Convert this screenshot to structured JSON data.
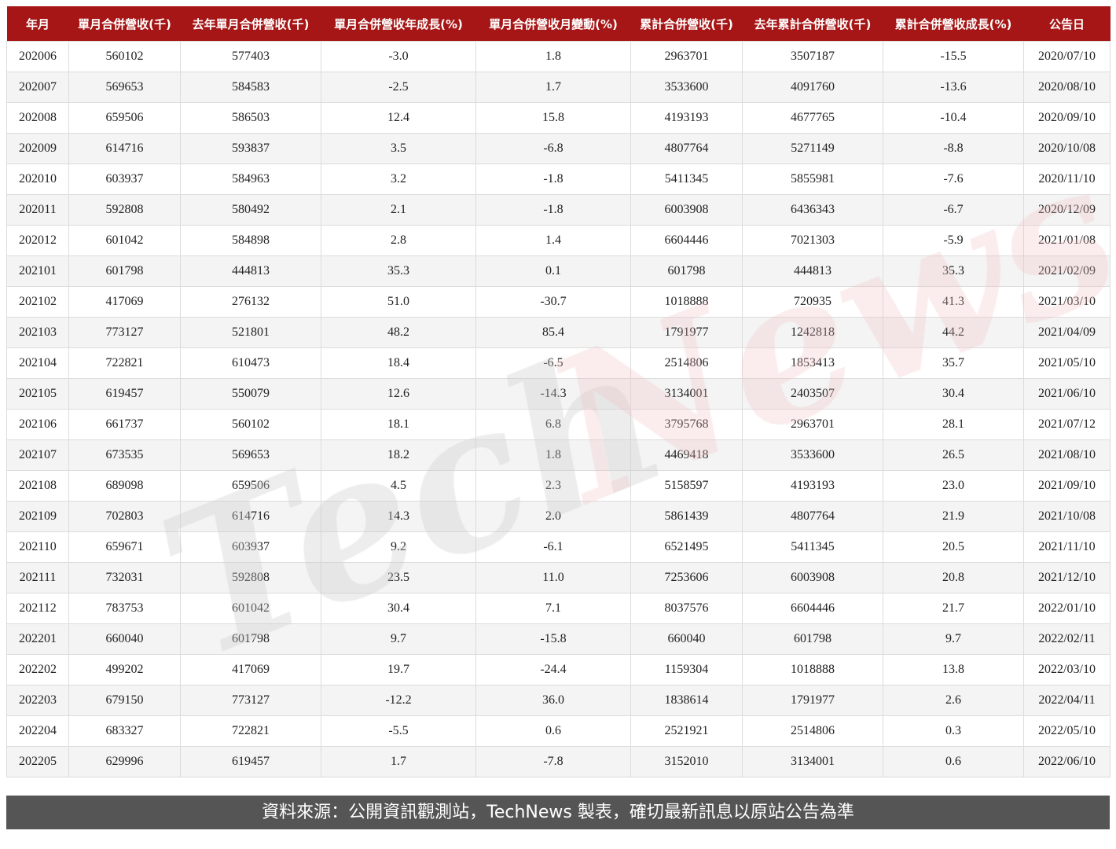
{
  "table": {
    "headers": [
      "年月",
      "單月合併營收(千)",
      "去年單月合併營收(千)",
      "單月合併營收年成長(%)",
      "單月合併營收月變動(%)",
      "累計合併營收(千)",
      "去年累計合併營收(千)",
      "累計合併營收成長(%)",
      "公告日"
    ],
    "rows": [
      [
        "202006",
        "560102",
        "577403",
        "-3.0",
        "1.8",
        "2963701",
        "3507187",
        "-15.5",
        "2020/07/10"
      ],
      [
        "202007",
        "569653",
        "584583",
        "-2.5",
        "1.7",
        "3533600",
        "4091760",
        "-13.6",
        "2020/08/10"
      ],
      [
        "202008",
        "659506",
        "586503",
        "12.4",
        "15.8",
        "4193193",
        "4677765",
        "-10.4",
        "2020/09/10"
      ],
      [
        "202009",
        "614716",
        "593837",
        "3.5",
        "-6.8",
        "4807764",
        "5271149",
        "-8.8",
        "2020/10/08"
      ],
      [
        "202010",
        "603937",
        "584963",
        "3.2",
        "-1.8",
        "5411345",
        "5855981",
        "-7.6",
        "2020/11/10"
      ],
      [
        "202011",
        "592808",
        "580492",
        "2.1",
        "-1.8",
        "6003908",
        "6436343",
        "-6.7",
        "2020/12/09"
      ],
      [
        "202012",
        "601042",
        "584898",
        "2.8",
        "1.4",
        "6604446",
        "7021303",
        "-5.9",
        "2021/01/08"
      ],
      [
        "202101",
        "601798",
        "444813",
        "35.3",
        "0.1",
        "601798",
        "444813",
        "35.3",
        "2021/02/09"
      ],
      [
        "202102",
        "417069",
        "276132",
        "51.0",
        "-30.7",
        "1018888",
        "720935",
        "41.3",
        "2021/03/10"
      ],
      [
        "202103",
        "773127",
        "521801",
        "48.2",
        "85.4",
        "1791977",
        "1242818",
        "44.2",
        "2021/04/09"
      ],
      [
        "202104",
        "722821",
        "610473",
        "18.4",
        "-6.5",
        "2514806",
        "1853413",
        "35.7",
        "2021/05/10"
      ],
      [
        "202105",
        "619457",
        "550079",
        "12.6",
        "-14.3",
        "3134001",
        "2403507",
        "30.4",
        "2021/06/10"
      ],
      [
        "202106",
        "661737",
        "560102",
        "18.1",
        "6.8",
        "3795768",
        "2963701",
        "28.1",
        "2021/07/12"
      ],
      [
        "202107",
        "673535",
        "569653",
        "18.2",
        "1.8",
        "4469418",
        "3533600",
        "26.5",
        "2021/08/10"
      ],
      [
        "202108",
        "689098",
        "659506",
        "4.5",
        "2.3",
        "5158597",
        "4193193",
        "23.0",
        "2021/09/10"
      ],
      [
        "202109",
        "702803",
        "614716",
        "14.3",
        "2.0",
        "5861439",
        "4807764",
        "21.9",
        "2021/10/08"
      ],
      [
        "202110",
        "659671",
        "603937",
        "9.2",
        "-6.1",
        "6521495",
        "5411345",
        "20.5",
        "2021/11/10"
      ],
      [
        "202111",
        "732031",
        "592808",
        "23.5",
        "11.0",
        "7253606",
        "6003908",
        "20.8",
        "2021/12/10"
      ],
      [
        "202112",
        "783753",
        "601042",
        "30.4",
        "7.1",
        "8037576",
        "6604446",
        "21.7",
        "2022/01/10"
      ],
      [
        "202201",
        "660040",
        "601798",
        "9.7",
        "-15.8",
        "660040",
        "601798",
        "9.7",
        "2022/02/11"
      ],
      [
        "202202",
        "499202",
        "417069",
        "19.7",
        "-24.4",
        "1159304",
        "1018888",
        "13.8",
        "2022/03/10"
      ],
      [
        "202203",
        "679150",
        "773127",
        "-12.2",
        "36.0",
        "1838614",
        "1791977",
        "2.6",
        "2022/04/11"
      ],
      [
        "202204",
        "683327",
        "722821",
        "-5.5",
        "0.6",
        "2521921",
        "2514806",
        "0.3",
        "2022/05/10"
      ],
      [
        "202205",
        "629996",
        "619457",
        "1.7",
        "-7.8",
        "3152010",
        "3134001",
        "0.6",
        "2022/06/10"
      ]
    ]
  },
  "watermark": {
    "part1": "Tech",
    "part2": "News",
    "color1": "#cccccc",
    "color2": "#f2c4c4"
  },
  "footer": {
    "text": "資料來源：公開資訊觀測站，TechNews 製表，確切最新訊息以原站公告為準"
  },
  "colors": {
    "header_bg": "#a71616",
    "footer_bg": "#555555"
  }
}
